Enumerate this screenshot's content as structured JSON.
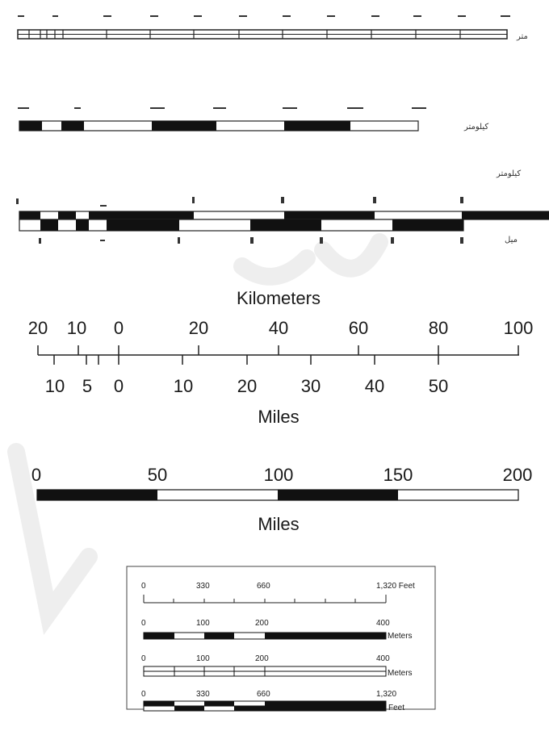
{
  "scanned_top": {
    "bar1_right_label": "متر",
    "bar2_right_label": "كيلومتر",
    "bar3_top_right_label": "كيلومتر",
    "bar3_bottom_right_label": "ميل"
  },
  "scale_km_mi": {
    "top_title": "Kilometers",
    "km_ticks": [
      "20",
      "10",
      "0",
      "20",
      "40",
      "60",
      "80",
      "100"
    ],
    "mile_ticks": [
      "10",
      "5",
      "0",
      "10",
      "20",
      "30",
      "40",
      "50"
    ],
    "bottom_title": "Miles"
  },
  "scale_alternating": {
    "ticks": [
      "0",
      "50",
      "100",
      "150",
      "200"
    ],
    "unit": "Miles"
  },
  "scale_box": {
    "row1": {
      "ticks": [
        "0",
        "330",
        "660",
        "1,320 Feet"
      ]
    },
    "row2": {
      "ticks": [
        "0",
        "100",
        "200",
        "400"
      ],
      "unit": "Meters"
    },
    "row3": {
      "ticks": [
        "0",
        "100",
        "200",
        "400"
      ],
      "unit": "Meters"
    },
    "row4": {
      "ticks": [
        "0",
        "330",
        "660",
        "1,320"
      ],
      "unit": "Feet"
    }
  },
  "colors": {
    "ink": "#111111",
    "paper": "#ffffff",
    "watermark": "#eeeeee"
  }
}
